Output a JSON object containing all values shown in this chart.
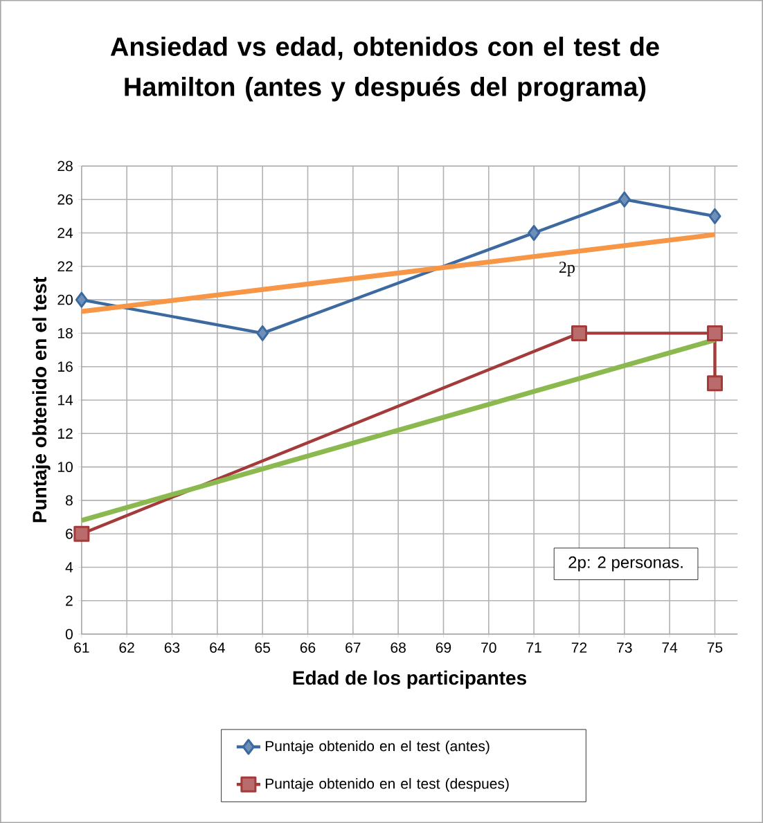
{
  "chart_data": {
    "type": "line",
    "title": "Ansiedad vs edad,  obtenidos con el test de Hamilton (antes y después del programa)",
    "xlabel": "Edad de los participantes",
    "ylabel": "Puntaje  obtenido en el test",
    "xlim": [
      61,
      75.5
    ],
    "xticks": [
      61,
      62,
      63,
      64,
      65,
      66,
      67,
      68,
      69,
      70,
      71,
      72,
      73,
      74,
      75
    ],
    "ylim": [
      0,
      28
    ],
    "yticks": [
      0,
      2,
      4,
      6,
      8,
      10,
      12,
      14,
      16,
      18,
      20,
      22,
      24,
      26,
      28
    ],
    "grid": true,
    "legend": "bottom",
    "series": [
      {
        "name": "Puntaje obtenido en el test (antes)",
        "color": "#3c6aa0",
        "marker": "diamond",
        "x": [
          61,
          65,
          71,
          73,
          75
        ],
        "values": [
          20,
          18,
          24,
          26,
          25
        ]
      },
      {
        "name": "Puntaje obtenido en el test (despues)",
        "color": "#a23b3a",
        "marker": "square",
        "x": [
          61,
          72,
          75,
          75
        ],
        "values": [
          6,
          18,
          18,
          15
        ]
      },
      {
        "color": "#f79646",
        "marker": "none",
        "x": [
          61,
          75
        ],
        "values": [
          19.3,
          23.9
        ]
      },
      {
        "color": "#8cb850",
        "marker": "none",
        "x": [
          61,
          75
        ],
        "values": [
          6.8,
          17.6
        ]
      }
    ],
    "annotations": [
      "2p",
      "2p: 2 personas."
    ]
  }
}
